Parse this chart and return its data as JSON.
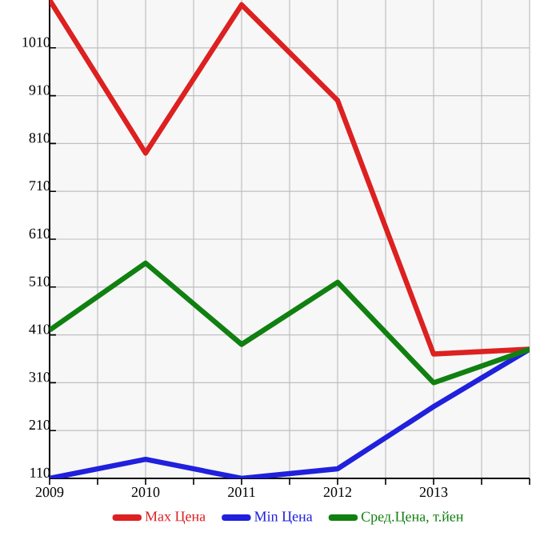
{
  "chart_data": {
    "type": "line",
    "x": [
      2009,
      2010,
      2011,
      2012,
      2013,
      2014
    ],
    "series": [
      {
        "name": "Max Цена",
        "color": "#dd2020",
        "values": [
          1110,
          790,
          1100,
          900,
          370,
          380
        ]
      },
      {
        "name": "Min Цена",
        "color": "#2020dd",
        "values": [
          110,
          150,
          110,
          130,
          260,
          380
        ]
      },
      {
        "name": "Сред.Цена, т.йен",
        "color": "#108010",
        "values": [
          420,
          560,
          390,
          520,
          310,
          380
        ]
      }
    ],
    "xlim": [
      2009,
      2014
    ],
    "ylim": [
      110,
      1110
    ],
    "xticks": [
      2009,
      2010,
      2011,
      2012,
      2013,
      {
        "value": 2014,
        "label": null
      }
    ],
    "yticks": [
      110,
      210,
      310,
      410,
      510,
      610,
      710,
      810,
      910,
      1010
    ],
    "grid": true,
    "legend": "bottom",
    "marker": "none",
    "line_style": "solid"
  }
}
